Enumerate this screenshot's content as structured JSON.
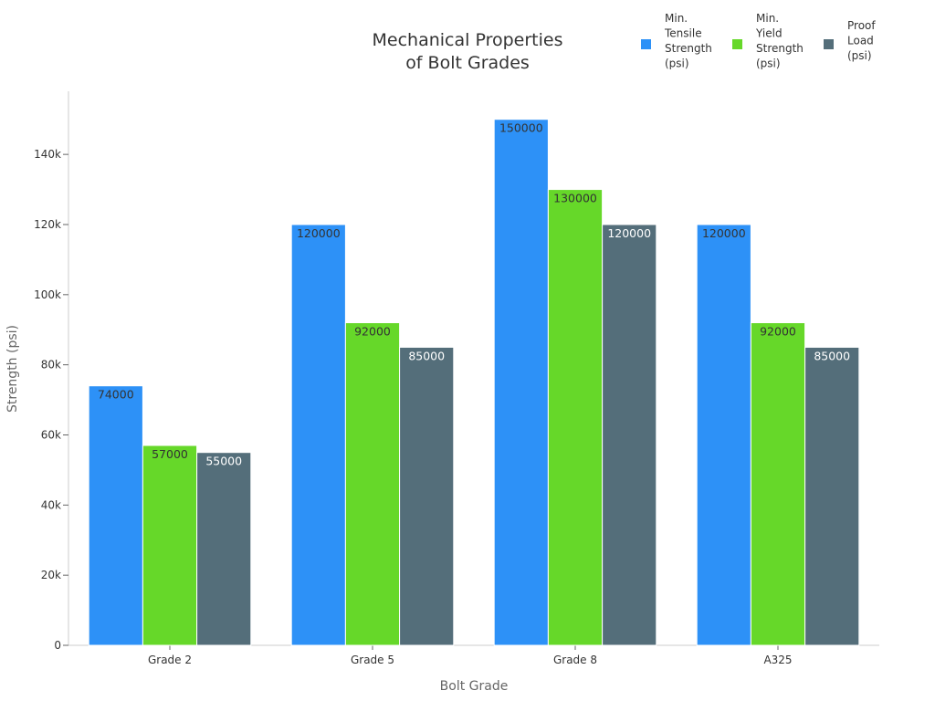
{
  "chart_data": {
    "type": "bar",
    "title": [
      "Mechanical Properties",
      "of Bolt Grades"
    ],
    "xlabel": "Bolt Grade",
    "ylabel": "Strength (psi)",
    "categories": [
      "Grade 2",
      "Grade 5",
      "Grade 8",
      "A325"
    ],
    "ylim": [
      0,
      158000
    ],
    "yticks": [
      0,
      20000,
      40000,
      60000,
      80000,
      100000,
      120000,
      140000
    ],
    "ytick_labels": [
      "0",
      "20k",
      "40k",
      "60k",
      "80k",
      "100k",
      "120k",
      "140k"
    ],
    "legend_position": "top-right",
    "series": [
      {
        "name": [
          "Min.",
          "Tensile",
          "Strength",
          "(psi)"
        ],
        "color": "#2d91f7",
        "label_color": "#333333",
        "values": [
          74000,
          120000,
          150000,
          120000
        ]
      },
      {
        "name": [
          "Min.",
          "Yield",
          "Strength",
          "(psi)"
        ],
        "color": "#66d829",
        "label_color": "#333333",
        "values": [
          57000,
          92000,
          130000,
          92000
        ]
      },
      {
        "name": [
          "Proof",
          "Load",
          "(psi)"
        ],
        "color": "#546e7a",
        "label_color": "#ffffff",
        "values": [
          55000,
          85000,
          120000,
          85000
        ]
      }
    ]
  }
}
